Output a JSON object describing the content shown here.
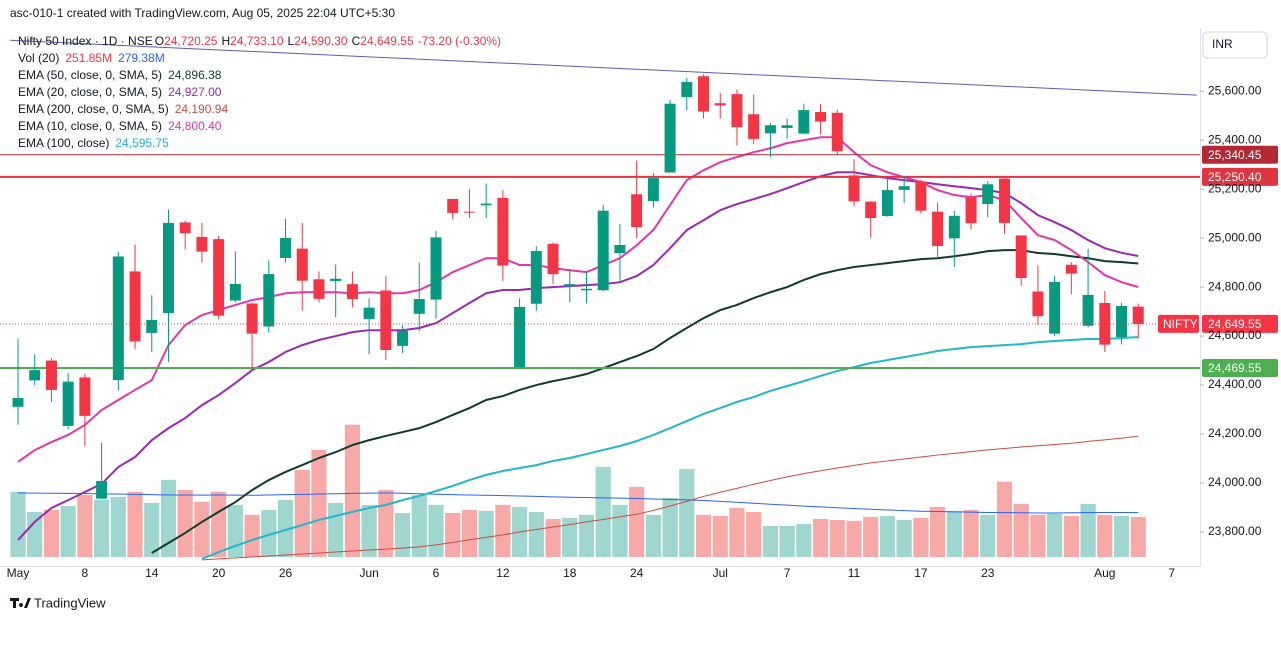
{
  "chart_data": {
    "type": "candlestick",
    "header": {
      "watermark": "asc-010-1 created with TradingView.com, Aug 05, 2025 22:04 UTC+5:30",
      "symbol": "Nifty 50 Index · 1D · NSE",
      "ohlc": [
        {
          "key": "O",
          "label": "24,720.25"
        },
        {
          "key": "H",
          "label": "24,733.10"
        },
        {
          "key": "L",
          "label": "24,590.30"
        },
        {
          "key": "C",
          "label": "24,649.55"
        }
      ],
      "change": "-73.20 (-0.30%)"
    },
    "currency": "INR",
    "categories": [
      "May",
      null,
      null,
      null,
      "8",
      null,
      null,
      null,
      "14",
      null,
      null,
      null,
      "20",
      null,
      null,
      null,
      "26",
      null,
      null,
      null,
      null,
      "Jun",
      null,
      null,
      null,
      "6",
      null,
      null,
      null,
      "12",
      null,
      null,
      null,
      "18",
      null,
      null,
      null,
      "24",
      null,
      null,
      null,
      null,
      "Jul",
      null,
      null,
      null,
      "7",
      null,
      null,
      null,
      "11",
      null,
      null,
      null,
      "17",
      null,
      null,
      null,
      "23",
      null,
      null,
      null,
      null,
      null,
      null,
      "Aug",
      null,
      null,
      null,
      "7"
    ],
    "ohlc": {
      "up_color": "#089981",
      "down_color": "#f23645",
      "open": [
        24311,
        24419,
        24500,
        24233,
        24431,
        23936,
        24420,
        24864,
        24613,
        24694,
        25064,
        25005,
        24996,
        24745,
        24733,
        24639,
        24919,
        24957,
        24832,
        24825,
        24812,
        24670,
        24786,
        24560,
        24691,
        24749,
        25160,
        25108,
        25134,
        25164,
        24473,
        24732,
        24977,
        24803,
        24787,
        24787,
        24939,
        25179,
        25151,
        25268,
        25576,
        25661,
        25551,
        25588,
        25506,
        25428,
        25450,
        25427,
        25515,
        25512,
        25256,
        25149,
        25090,
        25197,
        25231,
        25108,
        24999,
        25167,
        25139,
        25243,
        25011,
        24782,
        24610,
        24891,
        24642,
        24735,
        24596,
        24720.25,
        null,
        null
      ],
      "high": [
        24589,
        24526,
        24510,
        24449,
        24447,
        24164,
        24944,
        24974,
        24767,
        25116,
        25071,
        25062,
        25010,
        24946,
        24737,
        24909,
        25079,
        25062,
        24864,
        24892,
        24864,
        24754,
        24845,
        24644,
        24900,
        25029,
        25160,
        25200,
        25223,
        25196,
        24754,
        24967,
        24982,
        24872,
        24863,
        25136,
        25058,
        25317,
        25266,
        25565,
        25654,
        25669,
        25593,
        25608,
        25587,
        25470,
        25489,
        25549,
        25548,
        25525,
        25322,
        25151,
        25245,
        25255,
        25238,
        25145,
        25111,
        25182,
        25233,
        25246,
        25011,
        24889,
        24847,
        24902,
        24956,
        24784,
        24736,
        24733.1,
        null,
        null
      ],
      "low": [
        24238,
        24400,
        24331,
        24220,
        24150,
        23935,
        24378,
        24547,
        24535,
        24494,
        24953,
        24900,
        24669,
        24737,
        24463,
        24614,
        24900,
        24704,
        24737,
        24677,
        24717,
        24526,
        24503,
        24530,
        24620,
        24671,
        25077,
        25082,
        25082,
        24825,
        24473,
        24703,
        24813,
        24738,
        24733,
        24783,
        24824,
        24999,
        25125,
        25267,
        25523,
        25489,
        25488,
        25378,
        25384,
        25331,
        25407,
        25425,
        25424,
        25340,
        25129,
        25001,
        25088,
        25144,
        25101,
        24918,
        24882,
        25036,
        25085,
        25018,
        24806,
        24646,
        24599,
        24771,
        24635,
        24535,
        24566,
        24590.3,
        null,
        null
      ],
      "close": [
        24347,
        24461,
        24380,
        24414,
        24274,
        24008,
        24925,
        24578,
        24666,
        25062,
        25020,
        24945,
        24683,
        24813,
        24610,
        24853,
        25001,
        24826,
        24752,
        24834,
        24751,
        24716,
        24543,
        24621,
        24751,
        25003,
        25103,
        25105,
        25141,
        24888,
        24719,
        24947,
        24853,
        24812,
        24793,
        25112,
        24972,
        25045,
        25245,
        25549,
        25638,
        25517,
        25542,
        25453,
        25405,
        25461,
        25461,
        25523,
        25476,
        25355,
        25150,
        25082,
        25196,
        25212,
        25112,
        24968,
        25091,
        25061,
        25220,
        25062,
        24837,
        24681,
        24821,
        24855,
        24768,
        24565,
        24723,
        24649.55,
        null,
        null
      ]
    },
    "volume": {
      "name": "Vol (20)",
      "value_label": "251.85M",
      "ma_label": "279.38M",
      "up_color": "#9fd6cf",
      "down_color": "#f7a9a7",
      "ma_color": "#2962ff",
      "lim": [
        0,
        1000
      ],
      "values": [
        410,
        283,
        296,
        321,
        390,
        359,
        378,
        410,
        340,
        485,
        422,
        347,
        410,
        328,
        265,
        296,
        359,
        548,
        674,
        340,
        832,
        328,
        422,
        277,
        390,
        328,
        277,
        296,
        290,
        328,
        315,
        283,
        239,
        246,
        265,
        567,
        328,
        441,
        265,
        372,
        554,
        265,
        258,
        309,
        283,
        195,
        195,
        208,
        239,
        233,
        227,
        252,
        258,
        233,
        246,
        315,
        290,
        296,
        265,
        473,
        334,
        265,
        271,
        258,
        334,
        265,
        258,
        251.85,
        null,
        null
      ],
      "ma_values": [
        403,
        402,
        401,
        400,
        399,
        397,
        396,
        394,
        392,
        390,
        390,
        389,
        390,
        389,
        388,
        390,
        392,
        394,
        396,
        398,
        400,
        402,
        403,
        401,
        398,
        395,
        392,
        390,
        388,
        386,
        384,
        381,
        378,
        376,
        374,
        372,
        370,
        368,
        365,
        362,
        359,
        355,
        350,
        344,
        338,
        332,
        326,
        320,
        315,
        310,
        305,
        300,
        296,
        292,
        288,
        286,
        284,
        282,
        280,
        279,
        278,
        277,
        277,
        278,
        279,
        280,
        280,
        279.38,
        null,
        null
      ]
    },
    "lines": [
      {
        "name": "EMA (50, close, 0, SMA, 5)",
        "value_label": "24,896.38",
        "color": "#0f3b2c",
        "values": [
          null,
          null,
          null,
          null,
          null,
          null,
          null,
          null,
          23714,
          23755,
          23796,
          23841,
          23882,
          23922,
          23971,
          24012,
          24045,
          24073,
          24102,
          24126,
          24155,
          24175,
          24192,
          24208,
          24224,
          24249,
          24278,
          24306,
          24339,
          24355,
          24380,
          24400,
          24416,
          24429,
          24445,
          24469,
          24494,
          24518,
          24547,
          24592,
          24633,
          24673,
          24706,
          24727,
          24755,
          24779,
          24800,
          24829,
          24853,
          24869,
          24882,
          24890,
          24898,
          24906,
          24914,
          24918,
          24926,
          24935,
          24947,
          24951,
          24951,
          24939,
          24935,
          24926,
          24918,
          24906,
          24902,
          24896.38,
          null,
          null
        ]
      },
      {
        "name": "EMA (20, close, 0, SMA, 5)",
        "value_label": "24,927.00",
        "color": "#9c27b0",
        "values": [
          23767,
          23841,
          23898,
          23930,
          23963,
          23996,
          24065,
          24106,
          24175,
          24224,
          24265,
          24318,
          24359,
          24408,
          24461,
          24494,
          24535,
          24563,
          24584,
          24600,
          24616,
          24624,
          24624,
          24624,
          24633,
          24653,
          24694,
          24735,
          24775,
          24788,
          24788,
          24796,
          24800,
          24804,
          24808,
          24812,
          24820,
          24845,
          24890,
          24959,
          25033,
          25073,
          25114,
          25139,
          25159,
          25180,
          25204,
          25229,
          25253,
          25269,
          25269,
          25257,
          25245,
          25237,
          25229,
          25220,
          25212,
          25204,
          25196,
          25184,
          25143,
          25094,
          25065,
          25033,
          24992,
          24959,
          24940,
          24927.0,
          null,
          null
        ]
      },
      {
        "name": "EMA (200, close, 0, SMA, 5)",
        "value_label": "24,190.94",
        "color": "#cf4a3f",
        "values": [
          null,
          null,
          null,
          null,
          null,
          null,
          null,
          null,
          null,
          null,
          null,
          23686,
          23690,
          23694,
          23698,
          23702,
          23706,
          23710,
          23714,
          23718,
          23722,
          23726,
          23730,
          23734,
          23739,
          23747,
          23757,
          23768,
          23778,
          23788,
          23800,
          23810,
          23820,
          23830,
          23841,
          23851,
          23862,
          23872,
          23888,
          23906,
          23925,
          23945,
          23962,
          23978,
          23995,
          24010,
          24025,
          24038,
          24050,
          24061,
          24072,
          24082,
          24090,
          24098,
          24106,
          24114,
          24121,
          24128,
          24135,
          24141,
          24147,
          24152,
          24157,
          24162,
          24170,
          24176,
          24183,
          24190.94,
          null,
          null
        ]
      },
      {
        "name": "EMA (10, close, 0, SMA, 5)",
        "value_label": "24,800.40",
        "color": "#e535ab",
        "values": [
          24086,
          24134,
          24167,
          24196,
          24237,
          24298,
          24339,
          24380,
          24420,
          24563,
          24645,
          24686,
          24706,
          24727,
          24747,
          24759,
          24775,
          24779,
          24779,
          24779,
          24775,
          24779,
          24775,
          24775,
          24788,
          24820,
          24861,
          24890,
          24918,
          24918,
          24890,
          24890,
          24877,
          24869,
          24861,
          24890,
          24918,
          24971,
          25033,
          25135,
          25237,
          25277,
          25310,
          25331,
          25351,
          25367,
          25388,
          25400,
          25412,
          25412,
          25351,
          25298,
          25269,
          25249,
          25229,
          25196,
          25176,
          25167,
          25176,
          25155,
          25082,
          25012,
          24992,
          24951,
          24902,
          24849,
          24820,
          24800.4,
          null,
          null
        ]
      },
      {
        "name": "EMA (100, close)",
        "value_label": "24,595.75",
        "color": "#22b5cc",
        "values": [
          null,
          null,
          null,
          null,
          null,
          null,
          null,
          null,
          null,
          null,
          null,
          23690,
          23718,
          23743,
          23767,
          23788,
          23808,
          23828,
          23849,
          23865,
          23882,
          23898,
          23910,
          23930,
          23947,
          23967,
          23988,
          24012,
          24033,
          24049,
          24061,
          24073,
          24090,
          24102,
          24118,
          24135,
          24151,
          24171,
          24196,
          24224,
          24253,
          24282,
          24306,
          24331,
          24351,
          24376,
          24396,
          24416,
          24437,
          24457,
          24473,
          24490,
          24502,
          24514,
          24526,
          24539,
          24547,
          24555,
          24559,
          24563,
          24567,
          24575,
          24580,
          24584,
          24588,
          24588,
          24592,
          24595.75,
          null,
          null
        ]
      }
    ],
    "levels": [
      {
        "value": 25340.45,
        "label": "25,340.45",
        "color": "#b22833",
        "width": 1
      },
      {
        "value": 25250.4,
        "label": "25,250.40",
        "color": "#e0343f",
        "width": 2
      },
      {
        "value": 24469.55,
        "label": "24,469.55",
        "color": "#4caf50",
        "width": 2
      }
    ],
    "trendline": {
      "x": [
        -0.48,
        70.5
      ],
      "y": [
        25808,
        25584
      ],
      "color": "#5b5fb5"
    },
    "current_tag": "NIFTY",
    "current_label": "24,649.55",
    "ylim": [
      23665,
      25850
    ],
    "yticks": [
      {
        "value": 23800,
        "label": "23,800.00"
      },
      {
        "value": 24000,
        "label": "24,000.00"
      },
      {
        "value": 24200,
        "label": "24,200.00"
      },
      {
        "value": 24400,
        "label": "24,400.00"
      },
      {
        "value": 24600,
        "label": "24,600.00"
      },
      {
        "value": 24800,
        "label": "24,800.00"
      },
      {
        "value": 25000,
        "label": "25,000.00"
      },
      {
        "value": 25200,
        "label": "25,200.00"
      },
      {
        "value": 25400,
        "label": "25,400.00"
      },
      {
        "value": 25600,
        "label": "25,600.00"
      }
    ],
    "footer": {
      "brand": "TradingView"
    }
  }
}
